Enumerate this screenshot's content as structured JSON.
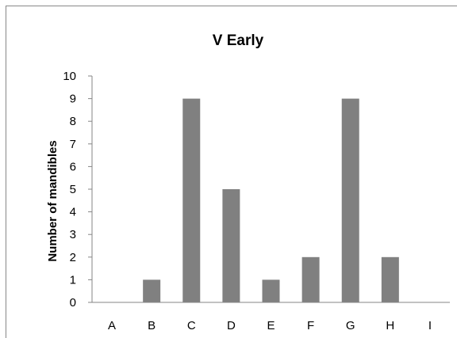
{
  "chart_data": {
    "type": "bar",
    "title": "V Early",
    "xlabel": "",
    "ylabel": "Number of mandibles",
    "categories": [
      "A",
      "B",
      "C",
      "D",
      "E",
      "F",
      "G",
      "H",
      "I"
    ],
    "values": [
      0,
      1,
      9,
      5,
      1,
      2,
      9,
      2,
      0
    ],
    "ylim": [
      0,
      10
    ],
    "yticks": [
      0,
      1,
      2,
      3,
      4,
      5,
      6,
      7,
      8,
      9,
      10
    ],
    "grid": false,
    "legend": "none",
    "bar_color": "#808080"
  }
}
